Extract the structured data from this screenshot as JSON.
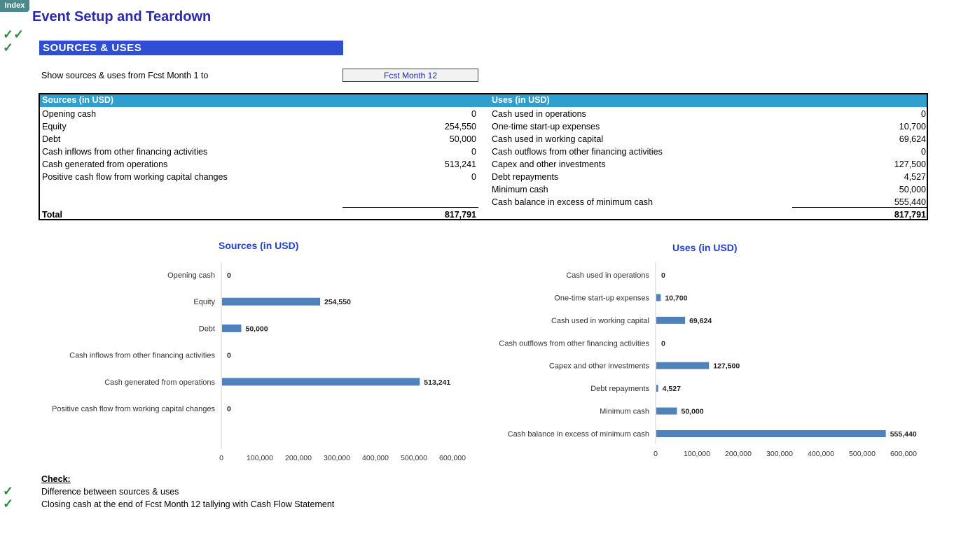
{
  "index_tab": "Index",
  "title": "Event Setup and Teardown",
  "checks_top": [
    "✓✓",
    "✓"
  ],
  "section_title": "SOURCES & USES",
  "period": {
    "label": "Show sources & uses from Fcst Month 1 to",
    "selected": "Fcst Month 12"
  },
  "sources": {
    "header": "Sources (in USD)",
    "rows": [
      {
        "label": "Opening cash",
        "value": "0"
      },
      {
        "label": "Equity",
        "value": "254,550"
      },
      {
        "label": "Debt",
        "value": "50,000"
      },
      {
        "label": "Cash inflows from other financing activities",
        "value": "0"
      },
      {
        "label": "Cash generated from operations",
        "value": "513,241"
      },
      {
        "label": "Positive cash flow from working capital changes",
        "value": "0"
      }
    ],
    "total_label": "Total",
    "total_value": "817,791"
  },
  "uses": {
    "header": "Uses (in USD)",
    "rows": [
      {
        "label": "Cash used in operations",
        "value": "0"
      },
      {
        "label": "One-time start-up expenses",
        "value": "10,700"
      },
      {
        "label": "Cash used in working capital",
        "value": "69,624"
      },
      {
        "label": "Cash outflows from other  financing activities",
        "value": "0"
      },
      {
        "label": "Capex and other investments",
        "value": "127,500"
      },
      {
        "label": "Debt repayments",
        "value": "4,527"
      },
      {
        "label": "Minimum cash",
        "value": "50,000"
      },
      {
        "label": "Cash balance in excess of minimum cash",
        "value": "555,440"
      }
    ],
    "total_value": "817,791"
  },
  "chart_data": [
    {
      "type": "bar",
      "orientation": "horizontal",
      "title": "Sources (in USD)",
      "categories": [
        "Opening cash",
        "Equity",
        "Debt",
        "Cash inflows from other financing activities",
        "Cash generated from operations",
        "Positive cash flow from working capital changes"
      ],
      "values": [
        0,
        254550,
        50000,
        0,
        513241,
        0
      ],
      "value_labels": [
        "0",
        "254,550",
        "50,000",
        "0",
        "513,241",
        "0"
      ],
      "xlim": [
        0,
        600000
      ],
      "ticks": [
        0,
        100000,
        200000,
        300000,
        400000,
        500000,
        600000
      ],
      "tick_labels": [
        "0",
        "100,000",
        "200,000",
        "300,000",
        "400,000",
        "500,000",
        "600,000"
      ],
      "color": "#4f81bd"
    },
    {
      "type": "bar",
      "orientation": "horizontal",
      "title": "Uses (in USD)",
      "categories": [
        "Cash used in operations",
        "One-time start-up expenses",
        "Cash used in working capital",
        "Cash outflows from other  financing activities",
        "Capex and other investments",
        "Debt repayments",
        "Minimum cash",
        "Cash balance in excess of minimum cash"
      ],
      "values": [
        0,
        10700,
        69624,
        0,
        127500,
        4527,
        50000,
        555440
      ],
      "value_labels": [
        "0",
        "10,700",
        "69,624",
        "0",
        "127,500",
        "4,527",
        "50,000",
        "555,440"
      ],
      "xlim": [
        0,
        600000
      ],
      "ticks": [
        0,
        100000,
        200000,
        300000,
        400000,
        500000,
        600000
      ],
      "tick_labels": [
        "0",
        "100,000",
        "200,000",
        "300,000",
        "400,000",
        "500,000",
        "600,000"
      ],
      "color": "#4f81bd"
    }
  ],
  "check_section": {
    "title": "Check:",
    "items": [
      {
        "mark": "✓",
        "label": "Difference between sources & uses"
      },
      {
        "mark": "✓",
        "label": "Closing cash at the end of Fcst Month 12 tallying with Cash Flow Statement"
      }
    ]
  }
}
